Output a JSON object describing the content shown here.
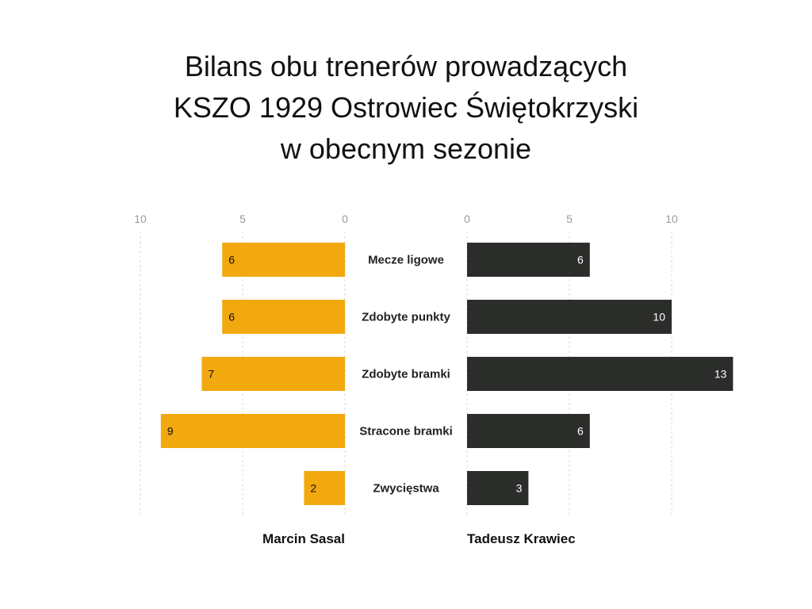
{
  "chart_data": {
    "type": "bar",
    "title_lines": [
      "Bilans obu trenerów prowadzących",
      "KSZO 1929 Ostrowiec Świętokrzyski",
      "w obecnym sezonie"
    ],
    "categories": [
      "Mecze ligowe",
      "Zdobyte punkty",
      "Zdobyte bramki",
      "Stracone bramki",
      "Zwycięstwa"
    ],
    "series": [
      {
        "name": "Marcin Sasal",
        "values": [
          6,
          6,
          7,
          9,
          2
        ],
        "color": "#f2a90f"
      },
      {
        "name": "Tadeusz Krawiec",
        "values": [
          6,
          10,
          13,
          6,
          3
        ],
        "color": "#2b2d2a"
      }
    ],
    "ticks": [
      0,
      5,
      10
    ],
    "grid": true,
    "layout": "back-to-back horizontal bars"
  }
}
